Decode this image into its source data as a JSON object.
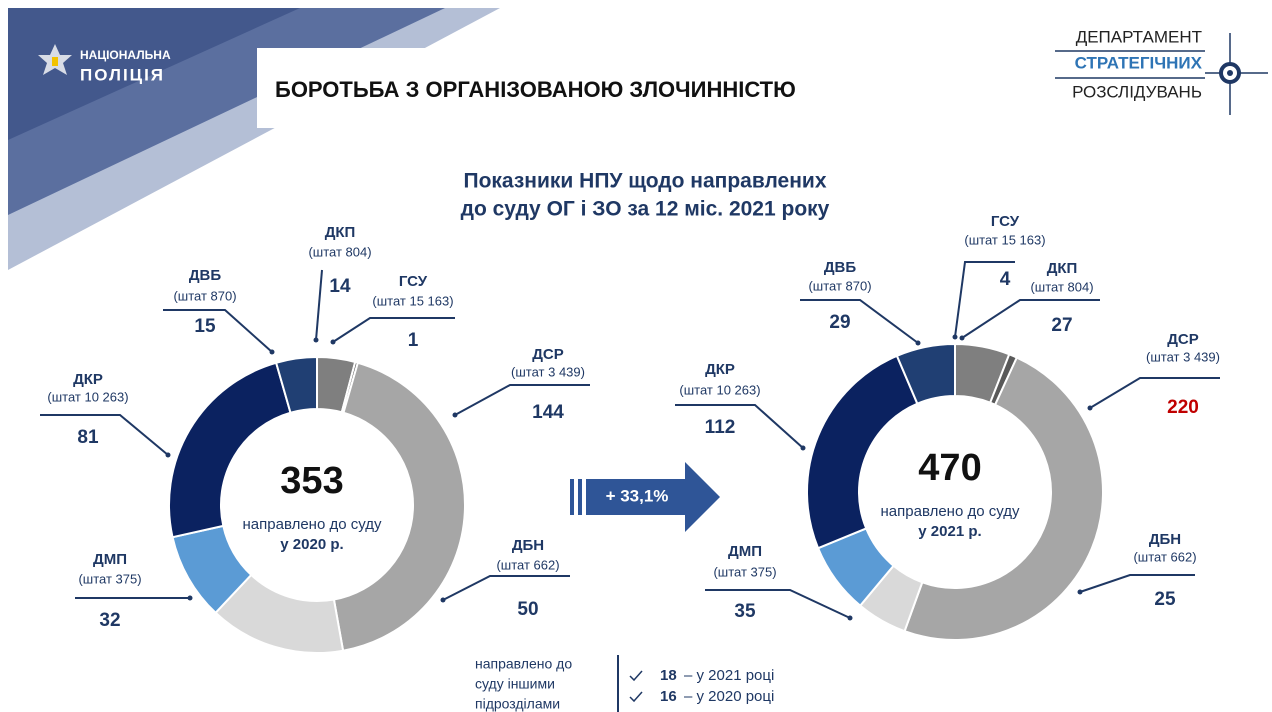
{
  "header": {
    "logo": [
      "НАЦІОНАЛЬНА",
      "ПОЛІЦІЯ"
    ],
    "title": "БОРОТЬБА З ОРГАНІЗОВАНОЮ ЗЛОЧИННІСТЮ",
    "dept": [
      "ДЕПАРТАМЕНТ",
      "СТРАТЕГІЧНИХ",
      "РОЗСЛІДУВАНЬ"
    ]
  },
  "subtitle": [
    "Показники НПУ щодо направлених",
    "до суду ОГ і ЗО за 12 міс. 2021 року"
  ],
  "change": "+ 33,1%",
  "chart_data": [
    {
      "type": "donut",
      "total": 353,
      "total_label": [
        "направлено до суду",
        "у 2020 р."
      ],
      "categories": [
        "ДКП",
        "ГСУ",
        "ДСР",
        "ДБН",
        "ДМП",
        "ДКР",
        "ДВБ"
      ],
      "sublabels": [
        "(штат 804)",
        "(штат 15 163)",
        "(штат 3 439)",
        "(штат 662)",
        "(штат 375)",
        "(штат 10 263)",
        "(штат 870)"
      ],
      "values": [
        14,
        1,
        144,
        50,
        32,
        81,
        15
      ],
      "colors": [
        "#7f7f7f",
        "#595959",
        "#a6a6a6",
        "#d9d9d9",
        "#5b9bd5",
        "#0b2260",
        "#203f73"
      ],
      "value_colors": [
        "#1f3864",
        "#1f3864",
        "#1f3864",
        "#1f3864",
        "#1f3864",
        "#1f3864",
        "#1f3864"
      ]
    },
    {
      "type": "donut",
      "total": 470,
      "total_label": [
        "направлено до суду",
        "у 2021 р."
      ],
      "categories": [
        "ДКП",
        "ГСУ",
        "ДСР",
        "ДБН",
        "ДМП",
        "ДКР",
        "ДВБ"
      ],
      "sublabels": [
        "(штат 804)",
        "(штат 15 163)",
        "(штат 3 439)",
        "(штат 662)",
        "(штат 375)",
        "(штат 10 263)",
        "(штат 870)"
      ],
      "values": [
        27,
        4,
        220,
        25,
        35,
        112,
        29
      ],
      "colors": [
        "#7f7f7f",
        "#595959",
        "#a6a6a6",
        "#d9d9d9",
        "#5b9bd5",
        "#0b2260",
        "#203f73"
      ],
      "value_colors": [
        "#1f3864",
        "#1f3864",
        "#c00000",
        "#1f3864",
        "#1f3864",
        "#1f3864",
        "#1f3864"
      ]
    }
  ],
  "footnote": {
    "label": [
      "направлено до",
      "суду іншими",
      "підрозділами"
    ],
    "items": [
      {
        "value": 18,
        "text": "– у 2021 році"
      },
      {
        "value": 16,
        "text": "– у 2020 році"
      }
    ]
  }
}
